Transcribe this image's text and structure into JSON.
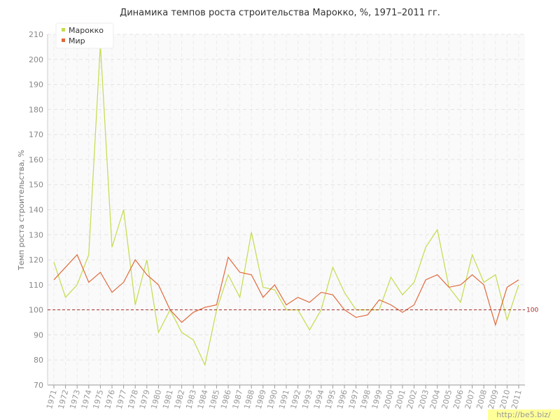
{
  "chart_data": {
    "type": "line",
    "title": "Динамика темпов роста строительства Марокко, %, 1971–2011 гг.",
    "y_label": "Темп роста строительства, %",
    "categories": [
      "1971",
      "1972",
      "1973",
      "1974",
      "1975",
      "1976",
      "1977",
      "1978",
      "1979",
      "1980",
      "1981",
      "1982",
      "1983",
      "1984",
      "1985",
      "1986",
      "1987",
      "1988",
      "1989",
      "1990",
      "1991",
      "1992",
      "1993",
      "1994",
      "1995",
      "1996",
      "1997",
      "1998",
      "1999",
      "2000",
      "2001",
      "2002",
      "2003",
      "2004",
      "2005",
      "2006",
      "2007",
      "2008",
      "2009",
      "2010",
      "2011"
    ],
    "series": [
      {
        "name": "Марокко",
        "color": "#c3dc4c",
        "values": [
          119,
          105,
          110,
          122,
          206,
          125,
          140,
          102,
          120,
          91,
          100,
          91,
          88,
          78,
          100,
          114,
          105,
          131,
          109,
          108,
          100,
          100,
          92,
          100,
          117,
          107,
          100,
          100,
          100,
          113,
          106,
          111,
          125,
          132,
          109,
          103,
          122,
          111,
          114,
          96,
          110
        ]
      },
      {
        "name": "Мир",
        "color": "#e0693c",
        "values": [
          112,
          117,
          122,
          111,
          115,
          107,
          111,
          120,
          114,
          110,
          100,
          95,
          99,
          101,
          102,
          121,
          115,
          114,
          105,
          110,
          102,
          105,
          103,
          107,
          106,
          100,
          97,
          98,
          104,
          102,
          99,
          102,
          112,
          114,
          109,
          110,
          114,
          110,
          94,
          109,
          112
        ]
      }
    ],
    "reference_line": 100,
    "reference_color": "#a52a2a",
    "ylim": [
      70,
      210
    ],
    "yticks": [
      70,
      80,
      90,
      100,
      110,
      120,
      130,
      140,
      150,
      160,
      170,
      180,
      190,
      200,
      210
    ],
    "grid": true,
    "legend": "top-left",
    "watermark": "http://be5.biz/"
  }
}
